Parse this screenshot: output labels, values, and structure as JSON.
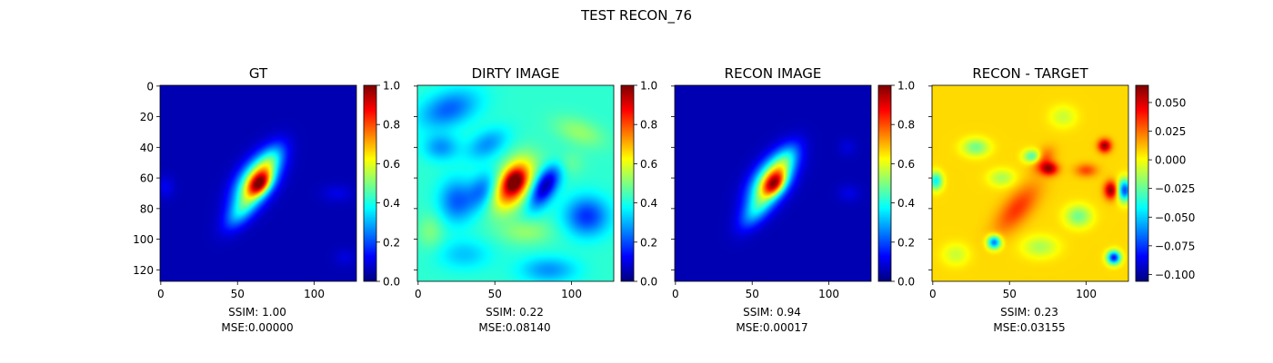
{
  "suptitle": "TEST RECON_76",
  "colors": {
    "colormap": "jet",
    "frame": "#000000",
    "background": "#ffffff"
  },
  "chart_data": [
    {
      "type": "heatmap",
      "title": "GT",
      "xticks": [
        "0",
        "50",
        "100"
      ],
      "yticks": [
        "0",
        "20",
        "40",
        "60",
        "80",
        "100",
        "120"
      ],
      "yticklabels_visible": true,
      "xlim": [
        0,
        128
      ],
      "ylim": [
        0,
        128
      ],
      "colorbar": {
        "min": 0.0,
        "max": 1.0,
        "ticks": [
          "0.0",
          "0.2",
          "0.4",
          "0.6",
          "0.8",
          "1.0"
        ]
      },
      "caption_ssim": "SSIM: 1.00",
      "caption_mse": "MSE:0.00000",
      "background_level": 0.05,
      "blobs": [
        {
          "x": 62,
          "y": 62,
          "sx": 13,
          "sy": 7,
          "angle": -55,
          "a": 0.62
        },
        {
          "x": 65,
          "y": 64,
          "sx": 6,
          "sy": 4,
          "angle": -50,
          "a": 0.4
        },
        {
          "x": 52,
          "y": 82,
          "sx": 10,
          "sy": 5,
          "angle": -50,
          "a": 0.22
        },
        {
          "x": 72,
          "y": 48,
          "sx": 9,
          "sy": 5,
          "angle": -55,
          "a": 0.18
        },
        {
          "x": 3,
          "y": 66,
          "sx": 4,
          "sy": 5,
          "angle": 0,
          "a": 0.06
        },
        {
          "x": 115,
          "y": 70,
          "sx": 7,
          "sy": 4,
          "angle": 0,
          "a": 0.05
        },
        {
          "x": 120,
          "y": 112,
          "sx": 5,
          "sy": 4,
          "angle": 0,
          "a": 0.04
        }
      ]
    },
    {
      "type": "heatmap",
      "title": "DIRTY IMAGE",
      "xticks": [
        "0",
        "50",
        "100"
      ],
      "yticks": [
        "0",
        "20",
        "40",
        "60",
        "80",
        "100",
        "120"
      ],
      "yticklabels_visible": false,
      "xlim": [
        0,
        128
      ],
      "ylim": [
        0,
        128
      ],
      "colorbar": {
        "min": 0.0,
        "max": 1.0,
        "ticks": [
          "0.0",
          "0.2",
          "0.4",
          "0.6",
          "0.8",
          "1.0"
        ]
      },
      "caption_ssim": "SSIM: 0.22",
      "caption_mse": "MSE:0.08140",
      "background_level": 0.42,
      "blobs": [
        {
          "x": 62,
          "y": 64,
          "sx": 12,
          "sy": 7,
          "angle": -60,
          "a": 0.5
        },
        {
          "x": 63,
          "y": 62,
          "sx": 5,
          "sy": 4,
          "angle": -60,
          "a": 0.2
        },
        {
          "x": 83,
          "y": 65,
          "sx": 11,
          "sy": 5,
          "angle": -60,
          "a": -0.38
        },
        {
          "x": 42,
          "y": 68,
          "sx": 9,
          "sy": 6,
          "angle": -60,
          "a": -0.18
        },
        {
          "x": 20,
          "y": 15,
          "sx": 14,
          "sy": 8,
          "angle": -20,
          "a": -0.2
        },
        {
          "x": 15,
          "y": 40,
          "sx": 8,
          "sy": 6,
          "angle": 0,
          "a": -0.15
        },
        {
          "x": 45,
          "y": 38,
          "sx": 10,
          "sy": 6,
          "angle": -30,
          "a": -0.15
        },
        {
          "x": 110,
          "y": 85,
          "sx": 10,
          "sy": 9,
          "angle": 0,
          "a": -0.25
        },
        {
          "x": 85,
          "y": 120,
          "sx": 13,
          "sy": 6,
          "angle": 0,
          "a": -0.15
        },
        {
          "x": 30,
          "y": 110,
          "sx": 12,
          "sy": 7,
          "angle": 0,
          "a": -0.1
        },
        {
          "x": 25,
          "y": 75,
          "sx": 8,
          "sy": 10,
          "angle": 0,
          "a": -0.2
        },
        {
          "x": 105,
          "y": 30,
          "sx": 12,
          "sy": 6,
          "angle": 20,
          "a": 0.1
        },
        {
          "x": 70,
          "y": 95,
          "sx": 12,
          "sy": 6,
          "angle": 0,
          "a": 0.1
        },
        {
          "x": 8,
          "y": 95,
          "sx": 6,
          "sy": 8,
          "angle": 0,
          "a": 0.08
        },
        {
          "x": 95,
          "y": 50,
          "sx": 8,
          "sy": 6,
          "angle": 0,
          "a": 0.08
        }
      ]
    },
    {
      "type": "heatmap",
      "title": "RECON IMAGE",
      "xticks": [
        "0",
        "50",
        "100"
      ],
      "yticks": [
        "0",
        "20",
        "40",
        "60",
        "80",
        "100",
        "120"
      ],
      "yticklabels_visible": false,
      "xlim": [
        0,
        128
      ],
      "ylim": [
        0,
        128
      ],
      "colorbar": {
        "min": 0.0,
        "max": 1.0,
        "ticks": [
          "0.0",
          "0.2",
          "0.4",
          "0.6",
          "0.8",
          "1.0"
        ]
      },
      "caption_ssim": "SSIM: 0.94",
      "caption_mse": "MSE:0.00017",
      "background_level": 0.05,
      "blobs": [
        {
          "x": 62,
          "y": 62,
          "sx": 13,
          "sy": 7,
          "angle": -55,
          "a": 0.6
        },
        {
          "x": 65,
          "y": 64,
          "sx": 6,
          "sy": 4,
          "angle": -50,
          "a": 0.36
        },
        {
          "x": 52,
          "y": 82,
          "sx": 10,
          "sy": 5,
          "angle": -50,
          "a": 0.2
        },
        {
          "x": 72,
          "y": 48,
          "sx": 9,
          "sy": 5,
          "angle": -55,
          "a": 0.18
        },
        {
          "x": 113,
          "y": 70,
          "sx": 5,
          "sy": 4,
          "angle": 0,
          "a": 0.05
        },
        {
          "x": 112,
          "y": 40,
          "sx": 4,
          "sy": 4,
          "angle": 0,
          "a": 0.04
        }
      ]
    },
    {
      "type": "heatmap",
      "title": "RECON - TARGET",
      "xticks": [
        "0",
        "50",
        "100"
      ],
      "yticks": [
        "0",
        "20",
        "40",
        "60",
        "80",
        "100",
        "120"
      ],
      "yticklabels_visible": false,
      "xlim": [
        0,
        128
      ],
      "ylim": [
        0,
        128
      ],
      "colorbar": {
        "min": -0.106,
        "max": 0.065,
        "ticks": [
          "0.050",
          "0.025",
          "0.000",
          "−0.025",
          "−0.050",
          "−0.075",
          "−0.100"
        ],
        "tick_values": [
          0.05,
          0.025,
          0.0,
          -0.025,
          -0.05,
          -0.075,
          -0.1
        ]
      },
      "caption_ssim": "SSIM: 0.23",
      "caption_mse": "MSE:0.03155",
      "background_level": 0.007,
      "blobs": [
        {
          "x": 55,
          "y": 80,
          "sx": 14,
          "sy": 6,
          "angle": -50,
          "a": 0.028
        },
        {
          "x": 72,
          "y": 48,
          "sx": 6,
          "sy": 4,
          "angle": -50,
          "a": 0.025
        },
        {
          "x": 76,
          "y": 54,
          "sx": 4,
          "sy": 3,
          "angle": 0,
          "a": 0.05
        },
        {
          "x": 65,
          "y": 46,
          "sx": 4,
          "sy": 3,
          "angle": 0,
          "a": -0.04
        },
        {
          "x": 112,
          "y": 39,
          "sx": 3,
          "sy": 3,
          "angle": 0,
          "a": 0.055
        },
        {
          "x": 116,
          "y": 68,
          "sx": 3,
          "sy": 4,
          "angle": 0,
          "a": 0.055
        },
        {
          "x": 125,
          "y": 68,
          "sx": 3,
          "sy": 5,
          "angle": 0,
          "a": -0.08
        },
        {
          "x": 118,
          "y": 112,
          "sx": 3,
          "sy": 3,
          "angle": 0,
          "a": -0.09
        },
        {
          "x": 40,
          "y": 102,
          "sx": 3,
          "sy": 3,
          "angle": 0,
          "a": -0.075
        },
        {
          "x": 2,
          "y": 62,
          "sx": 3,
          "sy": 4,
          "angle": 0,
          "a": -0.05
        },
        {
          "x": 28,
          "y": 40,
          "sx": 6,
          "sy": 4,
          "angle": 0,
          "a": -0.03
        },
        {
          "x": 95,
          "y": 85,
          "sx": 6,
          "sy": 5,
          "angle": 0,
          "a": -0.03
        },
        {
          "x": 70,
          "y": 105,
          "sx": 8,
          "sy": 5,
          "angle": 0,
          "a": -0.02
        },
        {
          "x": 100,
          "y": 55,
          "sx": 5,
          "sy": 3,
          "angle": 0,
          "a": 0.025
        },
        {
          "x": 45,
          "y": 60,
          "sx": 6,
          "sy": 4,
          "angle": 0,
          "a": -0.02
        },
        {
          "x": 15,
          "y": 110,
          "sx": 6,
          "sy": 5,
          "angle": 0,
          "a": -0.015
        },
        {
          "x": 85,
          "y": 20,
          "sx": 6,
          "sy": 5,
          "angle": 0,
          "a": -0.015
        }
      ]
    }
  ]
}
